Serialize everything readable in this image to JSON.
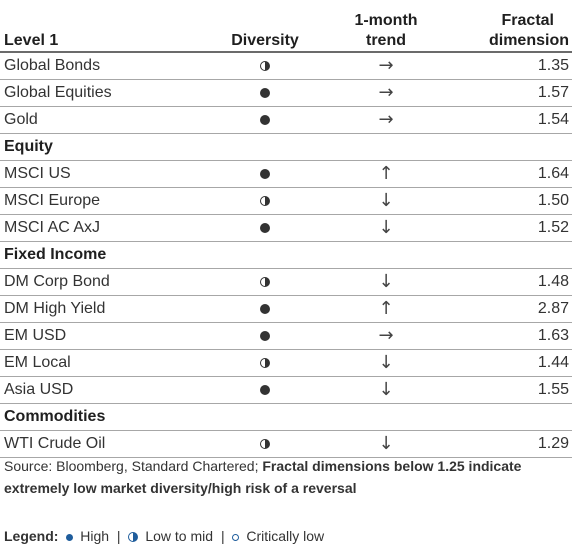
{
  "header": {
    "col_level": "Level 1",
    "col_diversity": "Diversity",
    "col_trend_line1": "1-month",
    "col_trend_line2": "trend",
    "col_fractal_line1": "Fractal",
    "col_fractal_line2": "dimension"
  },
  "rows": [
    {
      "type": "item",
      "name": "Global Bonds",
      "diversity": "half",
      "trend": "→",
      "value": "1.35"
    },
    {
      "type": "item",
      "name": "Global Equities",
      "diversity": "full",
      "trend": "→",
      "value": "1.57"
    },
    {
      "type": "item",
      "name": "Gold",
      "diversity": "full",
      "trend": "→",
      "value": "1.54"
    },
    {
      "type": "section",
      "name": "Equity"
    },
    {
      "type": "item",
      "name": "MSCI US",
      "diversity": "full",
      "trend": "↑",
      "value": "1.64"
    },
    {
      "type": "item",
      "name": "MSCI Europe",
      "diversity": "half",
      "trend": "↓",
      "value": "1.50"
    },
    {
      "type": "item",
      "name": "MSCI AC AxJ",
      "diversity": "full",
      "trend": "↓",
      "value": "1.52"
    },
    {
      "type": "section",
      "name": "Fixed Income"
    },
    {
      "type": "item",
      "name": "DM Corp Bond",
      "diversity": "half",
      "trend": "↓",
      "value": "1.48"
    },
    {
      "type": "item",
      "name": "DM High Yield",
      "diversity": "full",
      "trend": "↑",
      "value": "2.87"
    },
    {
      "type": "item",
      "name": "EM USD",
      "diversity": "full",
      "trend": "→",
      "value": "1.63"
    },
    {
      "type": "item",
      "name": "EM Local",
      "diversity": "half",
      "trend": "↓",
      "value": "1.44"
    },
    {
      "type": "item",
      "name": "Asia USD",
      "diversity": "full",
      "trend": "↓",
      "value": "1.55"
    },
    {
      "type": "section",
      "name": "Commodities"
    },
    {
      "type": "item",
      "name": "WTI Crude Oil",
      "diversity": "half",
      "trend": "↓",
      "value": "1.29"
    }
  ],
  "footer": {
    "source": "Source: Bloomberg, Standard Chartered; ",
    "note": "Fractal dimensions below 1.25 indicate extremely low market diversity/high risk of a reversal"
  },
  "legend": {
    "title": "Legend:",
    "high": "High",
    "low_to_mid": "Low to mid",
    "critically_low": "Critically low",
    "separator": "|"
  },
  "colors": {
    "text": "#333333",
    "legend_marker": "#1f5d9c",
    "rule": "#a7a7a7"
  }
}
